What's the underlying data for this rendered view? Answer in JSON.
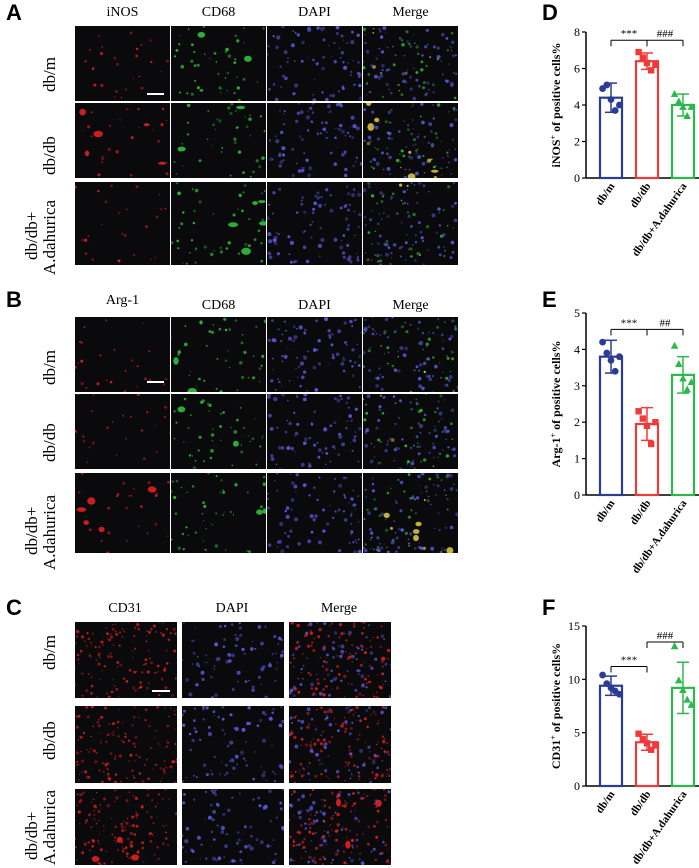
{
  "panel_letters": [
    "A",
    "B",
    "C",
    "D",
    "E",
    "F"
  ],
  "panel_A": {
    "columns": [
      "iNOS",
      "CD68",
      "DAPI",
      "Merge"
    ],
    "rows": [
      "db/m",
      "db/db",
      "db/db+",
      "A.dahurica"
    ]
  },
  "panel_B": {
    "columns": [
      "Arg-1",
      "CD68",
      "DAPI",
      "Merge"
    ],
    "rows": [
      "db/m",
      "db/db",
      "db/db+",
      "A.dahurica"
    ]
  },
  "panel_C": {
    "columns": [
      "CD31",
      "DAPI",
      "Merge"
    ],
    "rows": [
      "db/m",
      "db/db",
      "db/db+",
      "A.dahurica"
    ]
  },
  "colors": {
    "db_m": "#2b3c96",
    "db_db": "#ee3a3a",
    "treated": "#2db84d",
    "red_stain": "#e02020",
    "green_stain": "#2ec03a",
    "blue_stain": "#5a5ae0"
  },
  "chart_data": [
    {
      "panel": "D",
      "type": "bar",
      "ylabel_main": "iNOS",
      "ylabel_sup": "+",
      "ylabel_rest": " of positive cells%",
      "categories": [
        "db/m",
        "db/db",
        "db/db+A.dahurica"
      ],
      "values": [
        4.4,
        6.4,
        4.0
      ],
      "errors": [
        0.8,
        0.45,
        0.6
      ],
      "points": [
        [
          4.9,
          5.1,
          4.3,
          3.7,
          4.0
        ],
        [
          6.9,
          6.6,
          6.3,
          5.9,
          6.2
        ],
        [
          4.6,
          4.2,
          3.9,
          3.4,
          3.9
        ]
      ],
      "ylim": [
        0,
        8
      ],
      "yticks": [
        0,
        2,
        4,
        6,
        8
      ],
      "sig": [
        {
          "label": "***",
          "from": 0,
          "to": 1,
          "y": 7.55
        },
        {
          "label": "###",
          "from": 1,
          "to": 2,
          "y": 7.55
        }
      ]
    },
    {
      "panel": "E",
      "type": "bar",
      "ylabel_main": "Arg-1",
      "ylabel_sup": "+",
      "ylabel_rest": " of positive cells%",
      "categories": [
        "db/m",
        "db/db",
        "db/db+A.dahurica"
      ],
      "values": [
        3.8,
        1.95,
        3.3
      ],
      "errors": [
        0.45,
        0.45,
        0.5
      ],
      "points": [
        [
          4.2,
          3.9,
          3.7,
          3.4,
          3.8
        ],
        [
          2.3,
          2.1,
          1.9,
          1.4,
          2.0
        ],
        [
          4.1,
          3.6,
          3.2,
          2.9,
          3.1
        ]
      ],
      "ylim": [
        0,
        5
      ],
      "yticks": [
        0,
        1,
        2,
        3,
        4,
        5
      ],
      "sig": [
        {
          "label": "***",
          "from": 0,
          "to": 1,
          "y": 4.55
        },
        {
          "label": "##",
          "from": 1,
          "to": 2,
          "y": 4.55
        }
      ]
    },
    {
      "panel": "F",
      "type": "bar",
      "ylabel_main": "CD31",
      "ylabel_sup": "+",
      "ylabel_rest": " of positive cells%",
      "categories": [
        "db/m",
        "db/db",
        "db/db+A.dahurica"
      ],
      "values": [
        9.4,
        4.1,
        9.2
      ],
      "errors": [
        0.9,
        0.75,
        2.4
      ],
      "points": [
        [
          10.4,
          9.6,
          9.2,
          8.9,
          8.6
        ],
        [
          4.9,
          4.4,
          4.0,
          3.4,
          3.8
        ],
        [
          13.1,
          9.9,
          9.0,
          8.1,
          7.6
        ]
      ],
      "ylim": [
        0,
        15
      ],
      "yticks": [
        0,
        5,
        10,
        15
      ],
      "sig": [
        {
          "label": "***",
          "from": 0,
          "to": 1,
          "y": 11.2
        },
        {
          "label": "###",
          "from": 1,
          "to": 2,
          "y": 13.5
        }
      ]
    }
  ]
}
